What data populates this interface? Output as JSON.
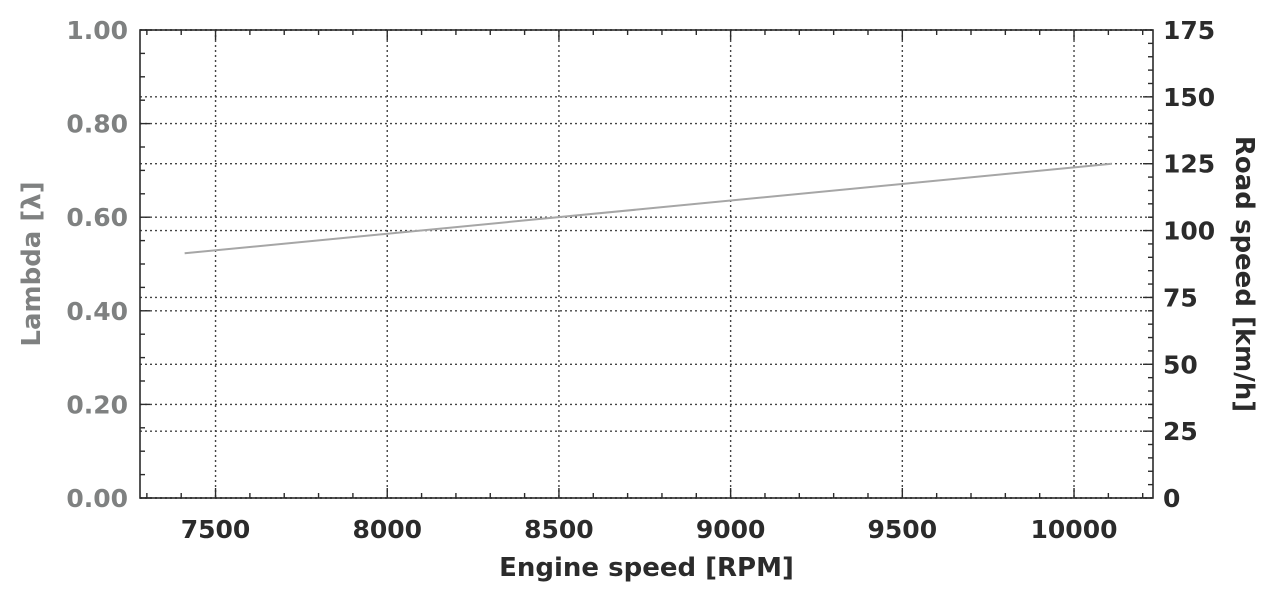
{
  "chart_data": {
    "type": "line",
    "xlabel": "Engine speed [RPM]",
    "ylabel": "Lambda [λ]",
    "y2label": "Road speed [km/h]",
    "xlim": [
      7280,
      10230
    ],
    "ylim": [
      0,
      1
    ],
    "y2lim": [
      0,
      175
    ],
    "x_ticks": [
      7500,
      8000,
      8500,
      9000,
      9500,
      10000
    ],
    "x_tick_labels": [
      "7500",
      "8000",
      "8500",
      "9000",
      "9500",
      "10000"
    ],
    "y_ticks": [
      0,
      0.2,
      0.4,
      0.6,
      0.8,
      1.0
    ],
    "y_tick_labels": [
      "0.00",
      "0.20",
      "0.40",
      "0.60",
      "0.80",
      "1.00"
    ],
    "y2_ticks": [
      0,
      25,
      50,
      75,
      100,
      125,
      150,
      175
    ],
    "y2_tick_labels": [
      "0",
      "25",
      "50",
      "75",
      "100",
      "125",
      "150",
      "175"
    ],
    "grid": true,
    "series": [
      {
        "axis": "right",
        "color": "#a6a6a6",
        "x": [
          7410,
          10110
        ],
        "y": [
          91.5,
          125
        ]
      }
    ]
  },
  "colors": {
    "left_axis": "#7f8181",
    "dark_axis": "#2b2b2b",
    "grid": "#444444"
  }
}
